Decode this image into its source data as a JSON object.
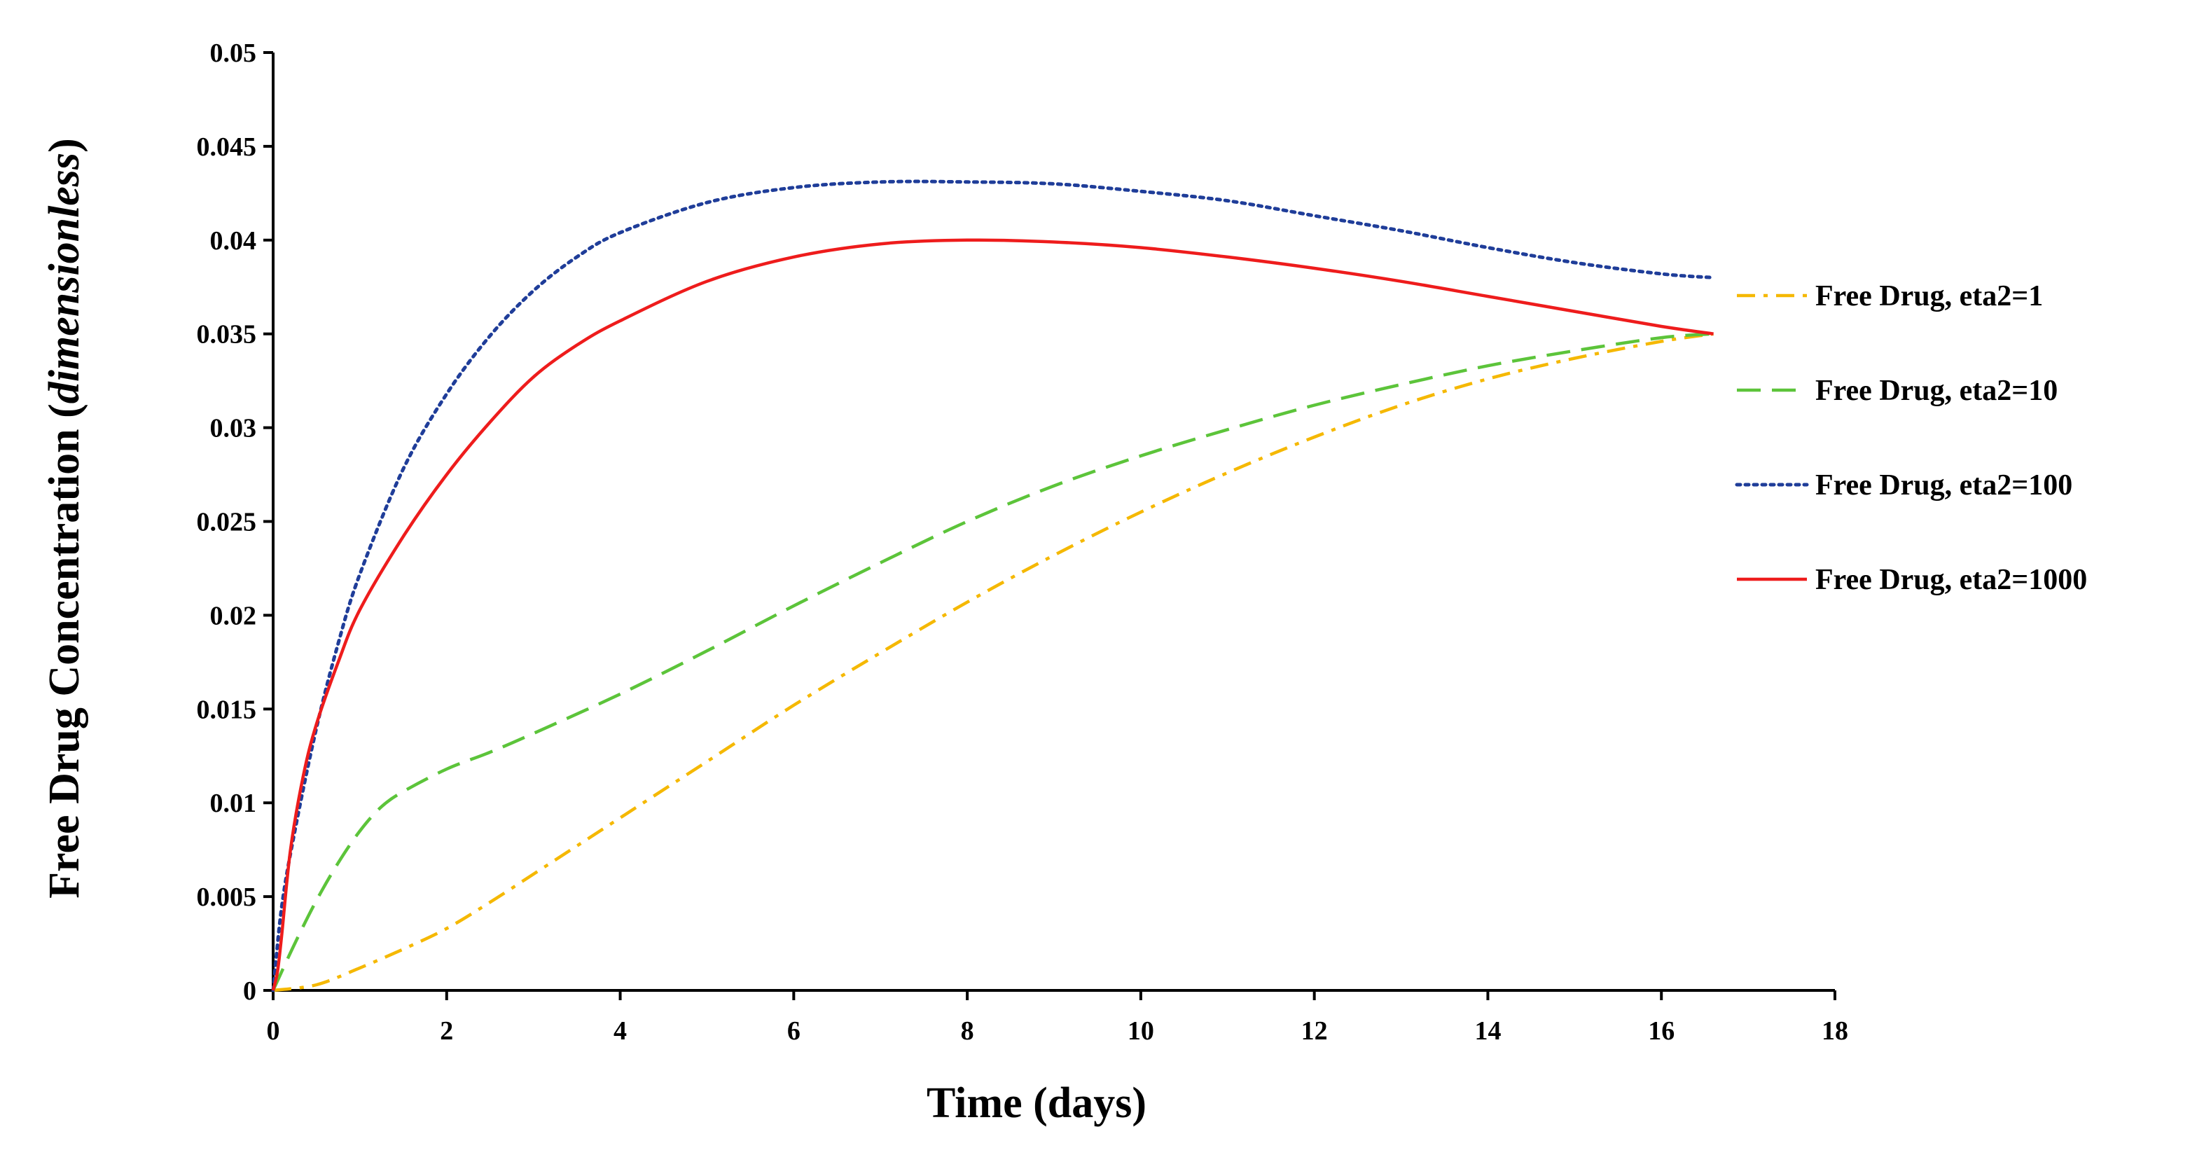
{
  "chart_data": {
    "type": "line",
    "title": "",
    "xlabel": "Time (days)",
    "ylabel_main": "Free Drug Concentration (",
    "ylabel_italic": "dimensionless",
    "ylabel_close": ")",
    "xlim": [
      0,
      18
    ],
    "ylim": [
      0,
      0.05
    ],
    "grid": false,
    "legend_position": "right",
    "x_ticks": [
      0,
      2,
      4,
      6,
      8,
      10,
      12,
      14,
      16,
      18
    ],
    "x_tick_labels": [
      "0",
      "2",
      "4",
      "6",
      "8",
      "10",
      "12",
      "14",
      "16",
      "18"
    ],
    "y_ticks": [
      0,
      0.005,
      0.01,
      0.015,
      0.02,
      0.025,
      0.03,
      0.035,
      0.04,
      0.045,
      0.05
    ],
    "y_tick_labels": [
      "0",
      "0.005",
      "0.01",
      "0.015",
      "0.02",
      "0.025",
      "0.03",
      "0.035",
      "0.04",
      "0.045",
      "0.05"
    ],
    "series": [
      {
        "name": "Free Drug, eta2=1",
        "color": "#f5b800",
        "dash": "dashdot",
        "x": [
          0,
          0.5,
          1,
          1.5,
          2,
          2.5,
          3,
          3.5,
          4,
          5,
          6,
          7,
          8,
          9,
          10,
          11,
          12,
          13,
          14,
          15,
          16,
          16.6
        ],
        "y": [
          0,
          0.0003,
          0.0012,
          0.0022,
          0.0033,
          0.0047,
          0.0062,
          0.0077,
          0.0092,
          0.0122,
          0.0152,
          0.018,
          0.0207,
          0.0232,
          0.0255,
          0.0276,
          0.0295,
          0.0312,
          0.0326,
          0.0337,
          0.0346,
          0.035
        ]
      },
      {
        "name": "Free Drug, eta2=10",
        "color": "#5cc43a",
        "dash": "dashed",
        "x": [
          0,
          0.25,
          0.5,
          0.75,
          1,
          1.25,
          1.5,
          2,
          2.5,
          3,
          4,
          5,
          6,
          7,
          8,
          9,
          10,
          11,
          12,
          13,
          14,
          15,
          16,
          16.6
        ],
        "y": [
          0,
          0.0025,
          0.0048,
          0.0068,
          0.0085,
          0.0098,
          0.0106,
          0.0118,
          0.0127,
          0.0137,
          0.0158,
          0.0181,
          0.0205,
          0.0228,
          0.025,
          0.0269,
          0.0285,
          0.0299,
          0.0312,
          0.0323,
          0.0333,
          0.0341,
          0.0348,
          0.035
        ]
      },
      {
        "name": "Free Drug, eta2=100",
        "color": "#1f3d99",
        "dash": "dotted",
        "x": [
          0,
          0.1,
          0.25,
          0.5,
          0.75,
          1,
          1.5,
          2,
          2.5,
          3,
          3.5,
          4,
          5,
          6,
          7,
          8,
          9,
          10,
          11,
          12,
          13,
          14,
          15,
          16,
          16.6
        ],
        "y": [
          0,
          0.0045,
          0.0085,
          0.014,
          0.0185,
          0.0222,
          0.0278,
          0.0318,
          0.0349,
          0.0373,
          0.0391,
          0.0404,
          0.042,
          0.0428,
          0.0431,
          0.0431,
          0.043,
          0.0426,
          0.0421,
          0.0413,
          0.0405,
          0.0396,
          0.0388,
          0.0382,
          0.038
        ]
      },
      {
        "name": "Free Drug, eta2=1000",
        "color": "#ee1c1c",
        "dash": "solid",
        "x": [
          0,
          0.05,
          0.1,
          0.2,
          0.35,
          0.5,
          0.75,
          1,
          1.5,
          2,
          2.5,
          3,
          3.5,
          4,
          5,
          6,
          7,
          8,
          9,
          10,
          11,
          12,
          13,
          14,
          15,
          16,
          16.6
        ],
        "y": [
          0,
          0.001,
          0.003,
          0.0075,
          0.0115,
          0.0142,
          0.0175,
          0.0203,
          0.0242,
          0.0275,
          0.0303,
          0.0327,
          0.0344,
          0.0357,
          0.0378,
          0.0391,
          0.0398,
          0.04,
          0.0399,
          0.0396,
          0.0391,
          0.0385,
          0.0378,
          0.037,
          0.0362,
          0.0354,
          0.035
        ]
      }
    ]
  }
}
